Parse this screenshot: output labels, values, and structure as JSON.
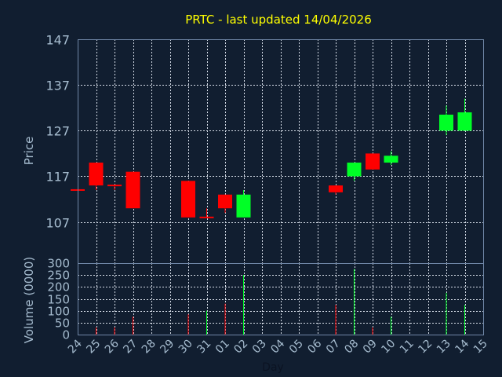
{
  "colors": {
    "background": "#111e30",
    "frame": "#6f86a6",
    "grid": "#d6dde8",
    "up": "#00ff26",
    "down": "#ff0000",
    "text": "#a6bccf",
    "title": "#ffff00"
  },
  "chart_data": {
    "type": "candlestick",
    "title": "PRTC - last updated 14/04/2026",
    "xlabel": "Day",
    "ylabel": "Price",
    "volume_label": "Volume (0000)",
    "grid": true,
    "x": [
      "24",
      "25",
      "26",
      "27",
      "28",
      "29",
      "30",
      "31",
      "01",
      "02",
      "03",
      "04",
      "05",
      "06",
      "07",
      "08",
      "09",
      "10",
      "11",
      "12",
      "13",
      "14",
      "15"
    ],
    "price": {
      "ylim": [
        98,
        147
      ],
      "ticks": [
        107,
        117,
        127,
        137,
        147
      ],
      "candles": [
        {
          "x": "24",
          "open": 114,
          "close": 114,
          "high": 114,
          "low": 114
        },
        {
          "x": "25",
          "open": 120,
          "close": 115,
          "high": 120,
          "low": 114
        },
        {
          "x": "26",
          "open": 115,
          "close": 115,
          "high": 115,
          "low": 114
        },
        {
          "x": "27",
          "open": 118,
          "close": 110,
          "high": 118,
          "low": 110
        },
        {
          "x": "30",
          "open": 116,
          "close": 108,
          "high": 116,
          "low": 108
        },
        {
          "x": "31",
          "open": 108,
          "close": 108,
          "high": 110,
          "low": 108
        },
        {
          "x": "01",
          "open": 113,
          "close": 110,
          "high": 113,
          "low": 109
        },
        {
          "x": "02",
          "open": 108,
          "close": 113,
          "high": 114,
          "low": 108
        },
        {
          "x": "07",
          "open": 115,
          "close": 113.5,
          "high": 115,
          "low": 113
        },
        {
          "x": "08",
          "open": 117,
          "close": 120,
          "high": 120,
          "low": 116
        },
        {
          "x": "09",
          "open": 122,
          "close": 118.5,
          "high": 122,
          "low": 118.5
        },
        {
          "x": "10",
          "open": 120,
          "close": 121.5,
          "high": 122.5,
          "low": 119.5
        },
        {
          "x": "13",
          "open": 127,
          "close": 130.5,
          "high": 132.5,
          "low": 126
        },
        {
          "x": "14",
          "open": 127,
          "close": 131,
          "high": 134,
          "low": 127
        }
      ]
    },
    "volume": {
      "ylim": [
        0,
        300
      ],
      "ticks": [
        0,
        50,
        100,
        150,
        200,
        250,
        300
      ],
      "bars": [
        {
          "x": "25",
          "value": 30,
          "dir": "down"
        },
        {
          "x": "26",
          "value": 30,
          "dir": "down"
        },
        {
          "x": "27",
          "value": 75,
          "dir": "down"
        },
        {
          "x": "30",
          "value": 85,
          "dir": "down"
        },
        {
          "x": "31",
          "value": 100,
          "dir": "up"
        },
        {
          "x": "01",
          "value": 130,
          "dir": "down"
        },
        {
          "x": "02",
          "value": 250,
          "dir": "up"
        },
        {
          "x": "07",
          "value": 125,
          "dir": "down"
        },
        {
          "x": "08",
          "value": 275,
          "dir": "up"
        },
        {
          "x": "09",
          "value": 30,
          "dir": "down"
        },
        {
          "x": "10",
          "value": 75,
          "dir": "up"
        },
        {
          "x": "13",
          "value": 175,
          "dir": "up"
        },
        {
          "x": "14",
          "value": 125,
          "dir": "up"
        }
      ]
    }
  }
}
